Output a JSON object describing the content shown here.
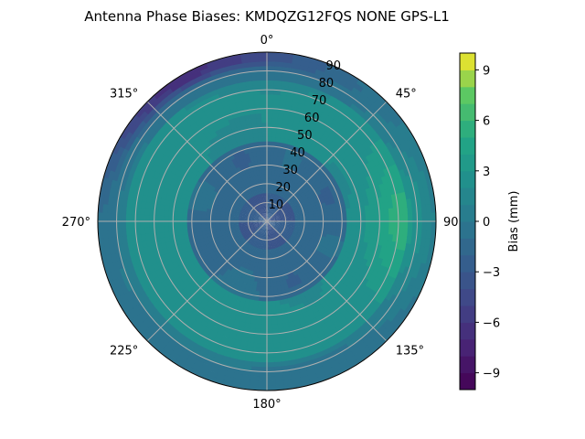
{
  "chart_data": {
    "type": "heatmap",
    "projection": "polar",
    "title": "Antenna Phase Biases: KMDQZG12FQS     NONE GPS-L1",
    "angular_ticks": [
      "0°",
      "45°",
      "90°",
      "135°",
      "180°",
      "225°",
      "270°",
      "315°"
    ],
    "angular_direction": "clockwise",
    "zero_location": "top",
    "radial_ticks": [
      "10",
      "20",
      "30",
      "40",
      "50",
      "60",
      "70",
      "80",
      "90"
    ],
    "radial_range": [
      0,
      90
    ],
    "grid": true,
    "colormap": "viridis",
    "colorbar": {
      "label": "Bias (mm)",
      "range": [
        -10,
        10
      ],
      "levels": 20,
      "ticks": [
        "−9",
        "−6",
        "−3",
        "0",
        "3",
        "6",
        "9"
      ],
      "tick_values": [
        -9,
        -6,
        -3,
        0,
        3,
        6,
        9
      ]
    },
    "field_description_values_mm": {
      "center": -3,
      "inner_ring_20_40": -1.5,
      "mid_ring_50_70": 2,
      "east_hotspot_az90_el75": 5.5,
      "north_edge_az0_el85": -2,
      "northwest_edge_az315_el85": -6,
      "southwest_band_az225_el60": 3,
      "south_edge_az180_el85": -1
    }
  }
}
